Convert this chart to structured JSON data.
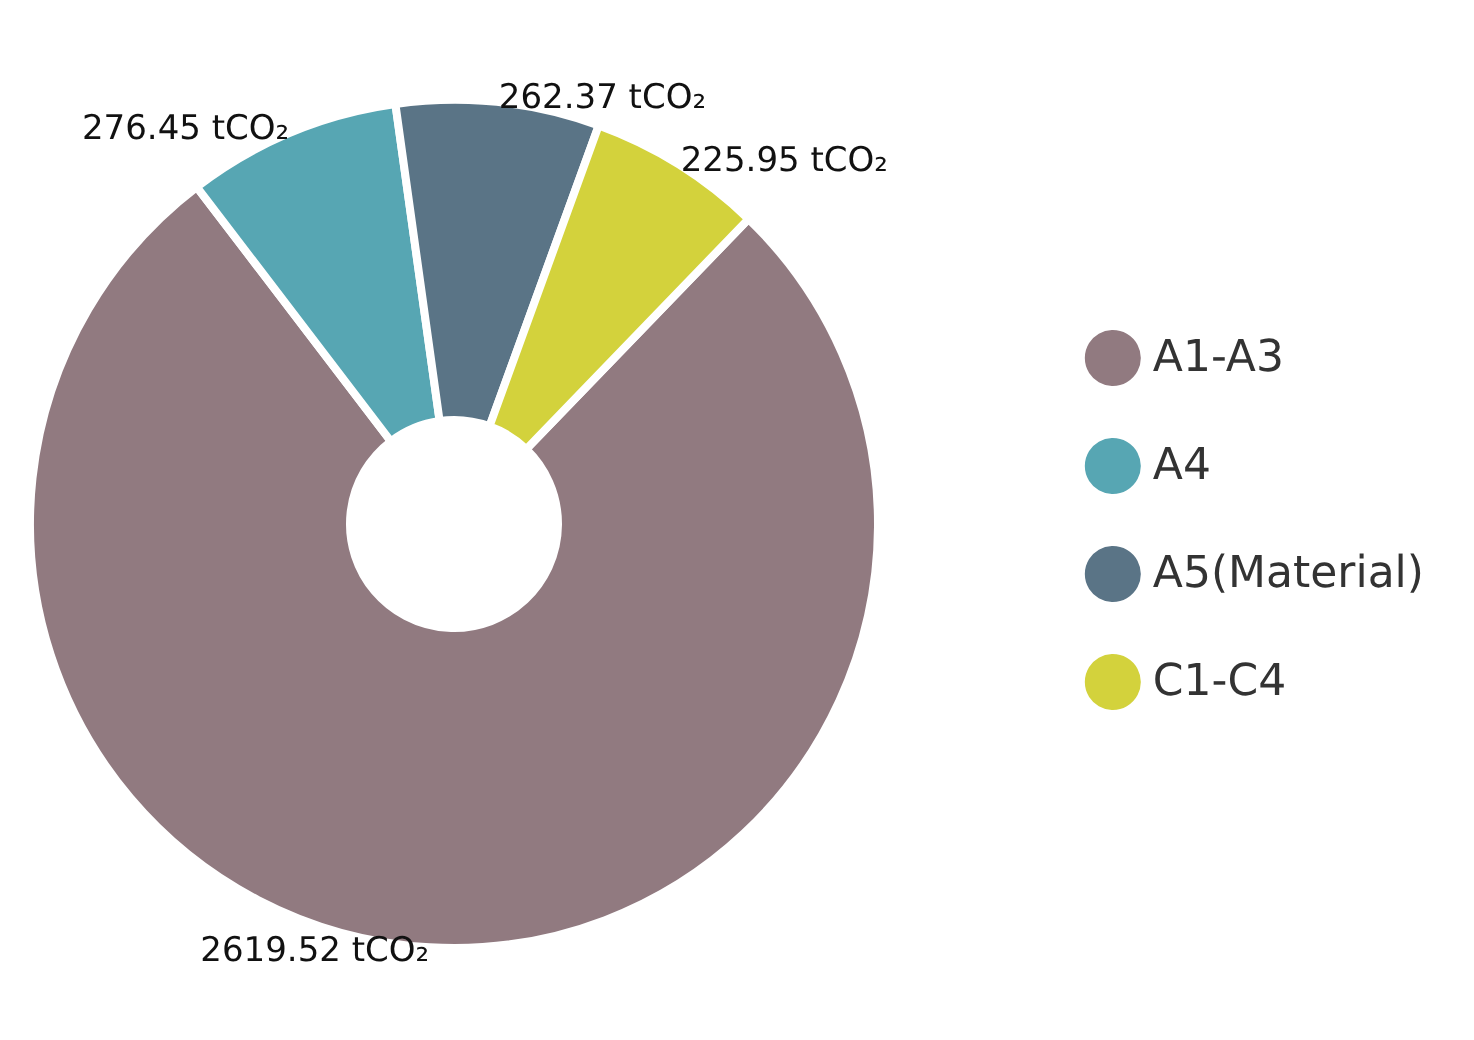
{
  "chart_data": {
    "type": "donut",
    "categories": [
      "A1-A3",
      "A4",
      "A5(Material)",
      "C1-C4"
    ],
    "values": [
      2619.52,
      276.45,
      262.37,
      225.95
    ],
    "colors": [
      "#917a80",
      "#57a6b3",
      "#5a7486",
      "#d3d23c"
    ],
    "value_labels": [
      "2619.52 tCO₂",
      "276.45 tCO₂",
      "262.37 tCO₂",
      "225.95 tCO₂"
    ],
    "legend": "right"
  }
}
